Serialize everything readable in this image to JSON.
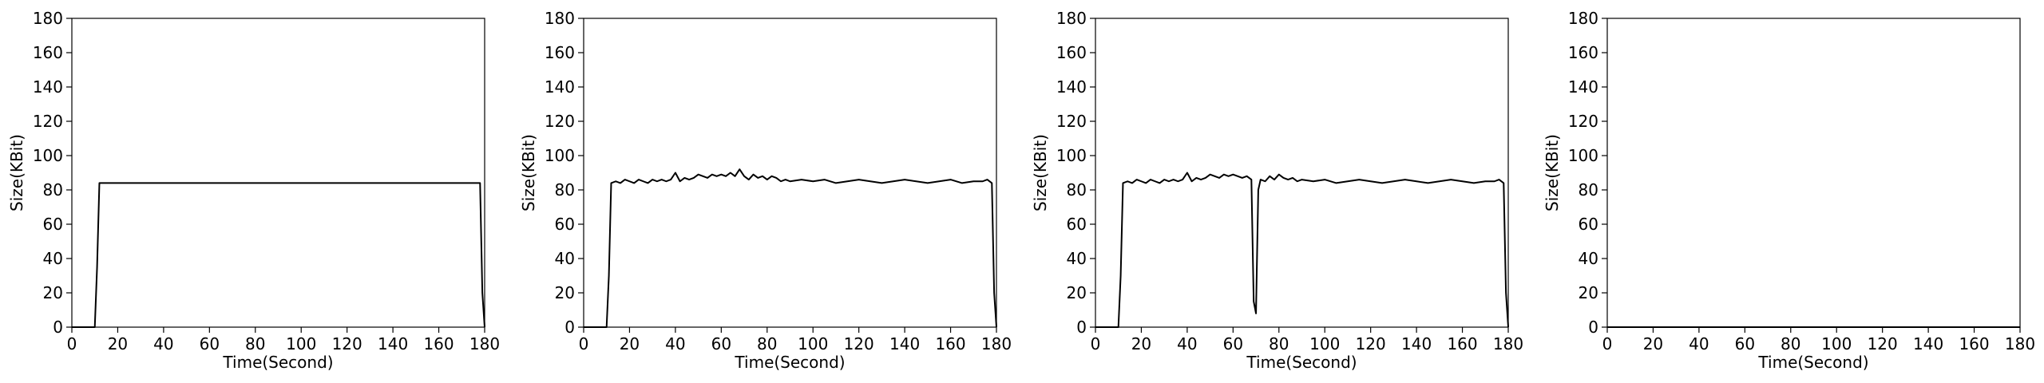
{
  "chart_data": [
    {
      "type": "line",
      "xlabel": "Time(Second)",
      "ylabel": "Size(KBit)",
      "xlim": [
        0,
        180
      ],
      "ylim": [
        0,
        180
      ],
      "xticks": [
        "0",
        "20",
        "40",
        "60",
        "80",
        "100",
        "120",
        "140",
        "160",
        "180"
      ],
      "yticks": [
        "0",
        "20",
        "40",
        "60",
        "80",
        "100",
        "120",
        "140",
        "160",
        "180"
      ],
      "grid": false,
      "line_color": "#000000",
      "series": [
        {
          "x": [
            0,
            2,
            4,
            6,
            8,
            10,
            11,
            12,
            14,
            16,
            20,
            30,
            40,
            50,
            60,
            70,
            80,
            90,
            100,
            110,
            120,
            130,
            140,
            150,
            160,
            170,
            176,
            178,
            179,
            180
          ],
          "y": [
            0,
            0,
            0,
            0,
            0,
            0,
            35,
            84,
            84,
            84,
            84,
            84,
            84,
            84,
            84,
            84,
            84,
            84,
            84,
            84,
            84,
            84,
            84,
            84,
            84,
            84,
            84,
            84,
            20,
            0
          ]
        }
      ]
    },
    {
      "type": "line",
      "xlabel": "Time(Second)",
      "ylabel": "Size(KBit)",
      "xlim": [
        0,
        180
      ],
      "ylim": [
        0,
        180
      ],
      "xticks": [
        "0",
        "20",
        "40",
        "60",
        "80",
        "100",
        "120",
        "140",
        "160",
        "180"
      ],
      "yticks": [
        "0",
        "20",
        "40",
        "60",
        "80",
        "100",
        "120",
        "140",
        "160",
        "180"
      ],
      "grid": false,
      "line_color": "#000000",
      "series": [
        {
          "x": [
            0,
            2,
            4,
            6,
            8,
            10,
            11,
            12,
            14,
            16,
            18,
            20,
            22,
            24,
            26,
            28,
            30,
            32,
            34,
            36,
            38,
            40,
            42,
            44,
            46,
            48,
            50,
            52,
            54,
            56,
            58,
            60,
            62,
            64,
            66,
            68,
            70,
            72,
            74,
            76,
            78,
            80,
            82,
            84,
            86,
            88,
            90,
            95,
            100,
            105,
            110,
            115,
            120,
            125,
            130,
            135,
            140,
            145,
            150,
            155,
            160,
            165,
            170,
            174,
            176,
            178,
            179,
            180
          ],
          "y": [
            0,
            0,
            0,
            0,
            0,
            0,
            30,
            84,
            85,
            84,
            86,
            85,
            84,
            86,
            85,
            84,
            86,
            85,
            86,
            85,
            86,
            90,
            85,
            87,
            86,
            87,
            89,
            88,
            87,
            89,
            88,
            89,
            88,
            90,
            88,
            92,
            88,
            86,
            89,
            87,
            88,
            86,
            88,
            87,
            85,
            86,
            85,
            86,
            85,
            86,
            84,
            85,
            86,
            85,
            84,
            85,
            86,
            85,
            84,
            85,
            86,
            84,
            85,
            85,
            86,
            84,
            20,
            0
          ]
        }
      ]
    },
    {
      "type": "line",
      "xlabel": "Time(Second)",
      "ylabel": "Size(KBit)",
      "xlim": [
        0,
        180
      ],
      "ylim": [
        0,
        180
      ],
      "xticks": [
        "0",
        "20",
        "40",
        "60",
        "80",
        "100",
        "120",
        "140",
        "160",
        "180"
      ],
      "yticks": [
        "0",
        "20",
        "40",
        "60",
        "80",
        "100",
        "120",
        "140",
        "160",
        "180"
      ],
      "grid": false,
      "line_color": "#000000",
      "series": [
        {
          "x": [
            0,
            2,
            4,
            6,
            8,
            10,
            11,
            12,
            14,
            16,
            18,
            20,
            22,
            24,
            26,
            28,
            30,
            32,
            34,
            36,
            38,
            40,
            42,
            44,
            46,
            48,
            50,
            52,
            54,
            56,
            58,
            60,
            62,
            64,
            66,
            68,
            69,
            70,
            71,
            72,
            74,
            76,
            78,
            80,
            82,
            84,
            86,
            88,
            90,
            95,
            100,
            105,
            110,
            115,
            120,
            125,
            130,
            135,
            140,
            145,
            150,
            155,
            160,
            165,
            170,
            174,
            176,
            178,
            179,
            180
          ],
          "y": [
            0,
            0,
            0,
            0,
            0,
            0,
            30,
            84,
            85,
            84,
            86,
            85,
            84,
            86,
            85,
            84,
            86,
            85,
            86,
            85,
            86,
            90,
            85,
            87,
            86,
            87,
            89,
            88,
            87,
            89,
            88,
            89,
            88,
            87,
            88,
            86,
            15,
            8,
            80,
            86,
            85,
            88,
            86,
            89,
            87,
            86,
            87,
            85,
            86,
            85,
            86,
            84,
            85,
            86,
            85,
            84,
            85,
            86,
            85,
            84,
            85,
            86,
            85,
            84,
            85,
            85,
            86,
            84,
            20,
            0
          ]
        }
      ]
    },
    {
      "type": "line",
      "xlabel": "Time(Second)",
      "ylabel": "Size(KBit)",
      "xlim": [
        0,
        180
      ],
      "ylim": [
        0,
        180
      ],
      "xticks": [
        "0",
        "20",
        "40",
        "60",
        "80",
        "100",
        "120",
        "140",
        "160",
        "180"
      ],
      "yticks": [
        "0",
        "20",
        "40",
        "60",
        "80",
        "100",
        "120",
        "140",
        "160",
        "180"
      ],
      "grid": false,
      "line_color": "#000000",
      "series": [
        {
          "x": [
            0,
            20,
            40,
            60,
            80,
            100,
            120,
            140,
            160,
            180
          ],
          "y": [
            0,
            0,
            0,
            0,
            0,
            0,
            0,
            0,
            0,
            0
          ]
        }
      ]
    }
  ]
}
